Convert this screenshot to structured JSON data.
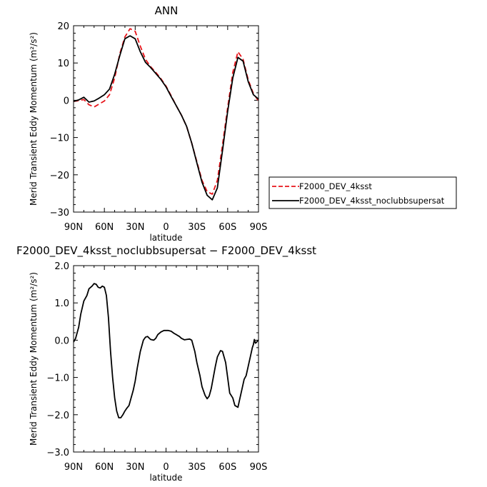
{
  "chart_data": [
    {
      "type": "line",
      "title": "ANN",
      "xlabel": "latitude",
      "ylabel": "Merid Transient Eddy Momentum (m²/s²)",
      "x_direction": "north-to-south",
      "xlim": [
        90,
        -90
      ],
      "ylim": [
        -30,
        20
      ],
      "x_ticks": [
        90,
        60,
        30,
        0,
        -30,
        -60,
        -90
      ],
      "x_tick_labels": [
        "90N",
        "60N",
        "30N",
        "0",
        "30S",
        "60S",
        "90S"
      ],
      "y_ticks": [
        20,
        10,
        0,
        -10,
        -20,
        -30
      ],
      "y_tick_labels": [
        "20",
        "10",
        "0",
        "−10",
        "−20",
        "−30"
      ],
      "legend_position": "right",
      "series": [
        {
          "name": "F2000_DEV_4ksst",
          "color": "#e8141a",
          "dash": "dashed",
          "x": [
            90,
            85,
            80,
            75,
            70,
            65,
            60,
            55,
            50,
            45,
            40,
            35,
            30,
            25,
            20,
            15,
            10,
            5,
            0,
            -5,
            -10,
            -15,
            -20,
            -25,
            -30,
            -35,
            -40,
            -45,
            -50,
            -55,
            -60,
            -65,
            -70,
            -75,
            -80,
            -85,
            -90
          ],
          "values": [
            -0.3,
            -0.1,
            0.2,
            -1.2,
            -1.8,
            -1.0,
            -0.2,
            1.5,
            6.0,
            12.5,
            17.0,
            19.2,
            18.5,
            14.5,
            11.0,
            9.0,
            7.5,
            5.8,
            3.8,
            1.2,
            -1.5,
            -4.0,
            -7.0,
            -11.5,
            -16.5,
            -21.5,
            -24.5,
            -25.2,
            -21.5,
            -12.0,
            -2.0,
            7.5,
            13.0,
            11.0,
            5.5,
            1.8,
            -0.2
          ]
        },
        {
          "name": "F2000_DEV_4ksst_noclubbsupersat",
          "color": "#000000",
          "dash": "solid",
          "x": [
            90,
            85,
            80,
            75,
            70,
            65,
            60,
            55,
            50,
            45,
            40,
            35,
            30,
            25,
            20,
            15,
            10,
            5,
            0,
            -5,
            -10,
            -15,
            -20,
            -25,
            -30,
            -35,
            -40,
            -45,
            -50,
            -55,
            -60,
            -65,
            -70,
            -75,
            -80,
            -85,
            -90
          ],
          "values": [
            -0.3,
            0.1,
            0.8,
            -0.5,
            -0.2,
            0.6,
            1.5,
            3.0,
            7.0,
            12.0,
            16.5,
            17.3,
            16.5,
            13.0,
            10.2,
            8.8,
            7.2,
            5.6,
            3.6,
            1.0,
            -1.5,
            -4.0,
            -7.0,
            -11.5,
            -16.8,
            -22.0,
            -25.5,
            -26.7,
            -23.5,
            -13.5,
            -3.0,
            6.0,
            11.5,
            10.5,
            5.0,
            1.5,
            0.3
          ]
        }
      ]
    },
    {
      "type": "line",
      "title": "F2000_DEV_4ksst_noclubbsupersat − F2000_DEV_4ksst",
      "xlabel": "latitude",
      "ylabel": "Merid Transient Eddy Momentum (m²/s²)",
      "x_direction": "north-to-south",
      "xlim": [
        90,
        -90
      ],
      "ylim": [
        -3.0,
        2.0
      ],
      "x_ticks": [
        90,
        60,
        30,
        0,
        -30,
        -60,
        -90
      ],
      "x_tick_labels": [
        "90N",
        "60N",
        "30N",
        "0",
        "30S",
        "60S",
        "90S"
      ],
      "y_ticks": [
        2.0,
        1.0,
        0.0,
        -1.0,
        -2.0,
        -3.0
      ],
      "y_tick_labels": [
        "2.0",
        "1.0",
        "0.0",
        "−1.0",
        "−2.0",
        "−3.0"
      ],
      "series": [
        {
          "color": "#000000",
          "dash": "solid",
          "x": [
            90,
            88,
            85,
            83,
            80,
            77,
            75,
            72,
            70,
            68,
            66,
            64,
            62,
            60,
            58,
            56,
            54,
            52,
            50,
            48,
            46,
            44,
            42,
            40,
            38,
            36,
            34,
            32,
            30,
            28,
            25,
            22,
            20,
            18,
            15,
            12,
            10,
            8,
            5,
            2,
            0,
            -2,
            -5,
            -8,
            -10,
            -13,
            -15,
            -18,
            -20,
            -23,
            -25,
            -28,
            -30,
            -33,
            -35,
            -38,
            -40,
            -42,
            -44,
            -46,
            -48,
            -50,
            -53,
            -55,
            -58,
            -60,
            -62,
            -65,
            -67,
            -70,
            -72,
            -74,
            -76,
            -78,
            -80,
            -82,
            -84,
            -85,
            -86,
            -87,
            -88,
            -89,
            -90
          ],
          "values": [
            -0.05,
            0.05,
            0.35,
            0.7,
            1.05,
            1.2,
            1.38,
            1.45,
            1.52,
            1.5,
            1.42,
            1.4,
            1.45,
            1.42,
            1.2,
            0.6,
            -0.3,
            -1.0,
            -1.55,
            -1.9,
            -2.08,
            -2.08,
            -2.0,
            -1.9,
            -1.82,
            -1.75,
            -1.55,
            -1.35,
            -1.1,
            -0.75,
            -0.3,
            0.0,
            0.08,
            0.1,
            0.02,
            0.0,
            0.05,
            0.15,
            0.22,
            0.26,
            0.26,
            0.26,
            0.24,
            0.18,
            0.15,
            0.1,
            0.05,
            0.01,
            0.02,
            0.03,
            0.0,
            -0.3,
            -0.6,
            -0.95,
            -1.25,
            -1.48,
            -1.57,
            -1.5,
            -1.3,
            -1.0,
            -0.7,
            -0.45,
            -0.28,
            -0.3,
            -0.6,
            -1.0,
            -1.42,
            -1.55,
            -1.75,
            -1.8,
            -1.55,
            -1.3,
            -1.05,
            -0.95,
            -0.7,
            -0.45,
            -0.2,
            -0.12,
            0.02,
            -0.08,
            -0.06,
            -0.02,
            0.0
          ]
        }
      ]
    }
  ]
}
